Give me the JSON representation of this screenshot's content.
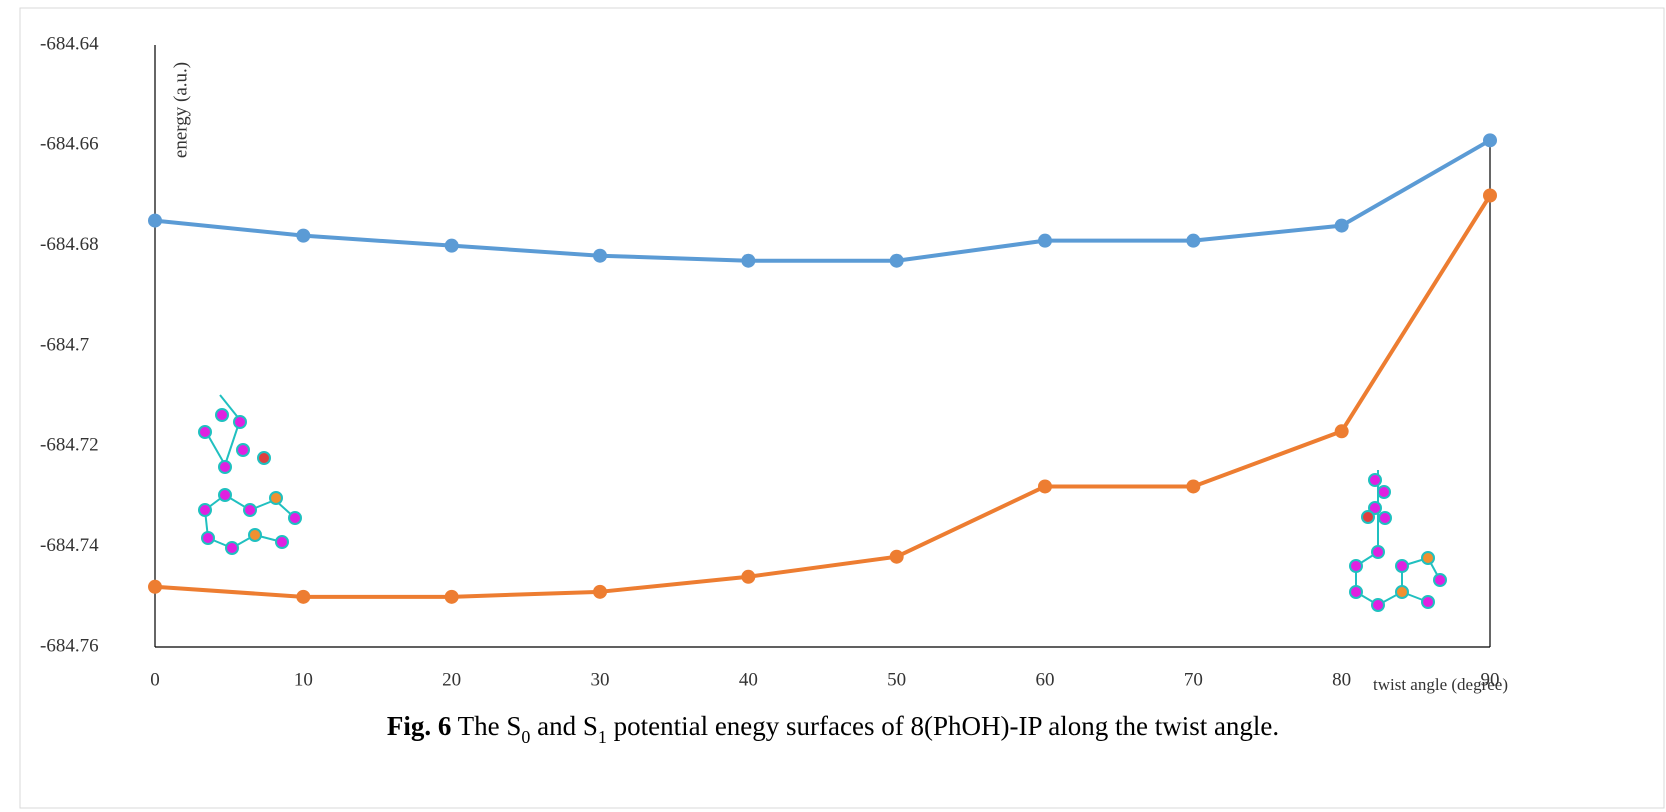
{
  "chart_data": {
    "type": "line",
    "y_label": "energy (a.u.)",
    "x_label": "twist angle (degree)",
    "x": [
      0,
      10,
      20,
      30,
      40,
      50,
      60,
      70,
      80,
      90
    ],
    "xlim": [
      0,
      90
    ],
    "xticks": [
      0,
      10,
      20,
      30,
      40,
      50,
      60,
      70,
      80,
      90
    ],
    "ylim": [
      -684.76,
      -684.64
    ],
    "yticks": [
      -684.64,
      -684.66,
      -684.68,
      -684.7,
      -684.72,
      -684.74,
      -684.76
    ],
    "grid": false,
    "series": [
      {
        "color": "#5b9bd5",
        "values": [
          -684.675,
          -684.678,
          -684.68,
          -684.682,
          -684.683,
          -684.683,
          -684.679,
          -684.679,
          -684.676,
          -684.659
        ]
      },
      {
        "color": "#ed7d31",
        "values": [
          -684.748,
          -684.75,
          -684.75,
          -684.749,
          -684.746,
          -684.742,
          -684.728,
          -684.728,
          -684.717,
          -684.67
        ]
      }
    ],
    "caption": {
      "label": "Fig. 6",
      "parts": [
        " The S",
        "0",
        " and S",
        "1",
        " potential enegy surfaces of 8(PhOH)-IP along the twist angle."
      ]
    }
  }
}
